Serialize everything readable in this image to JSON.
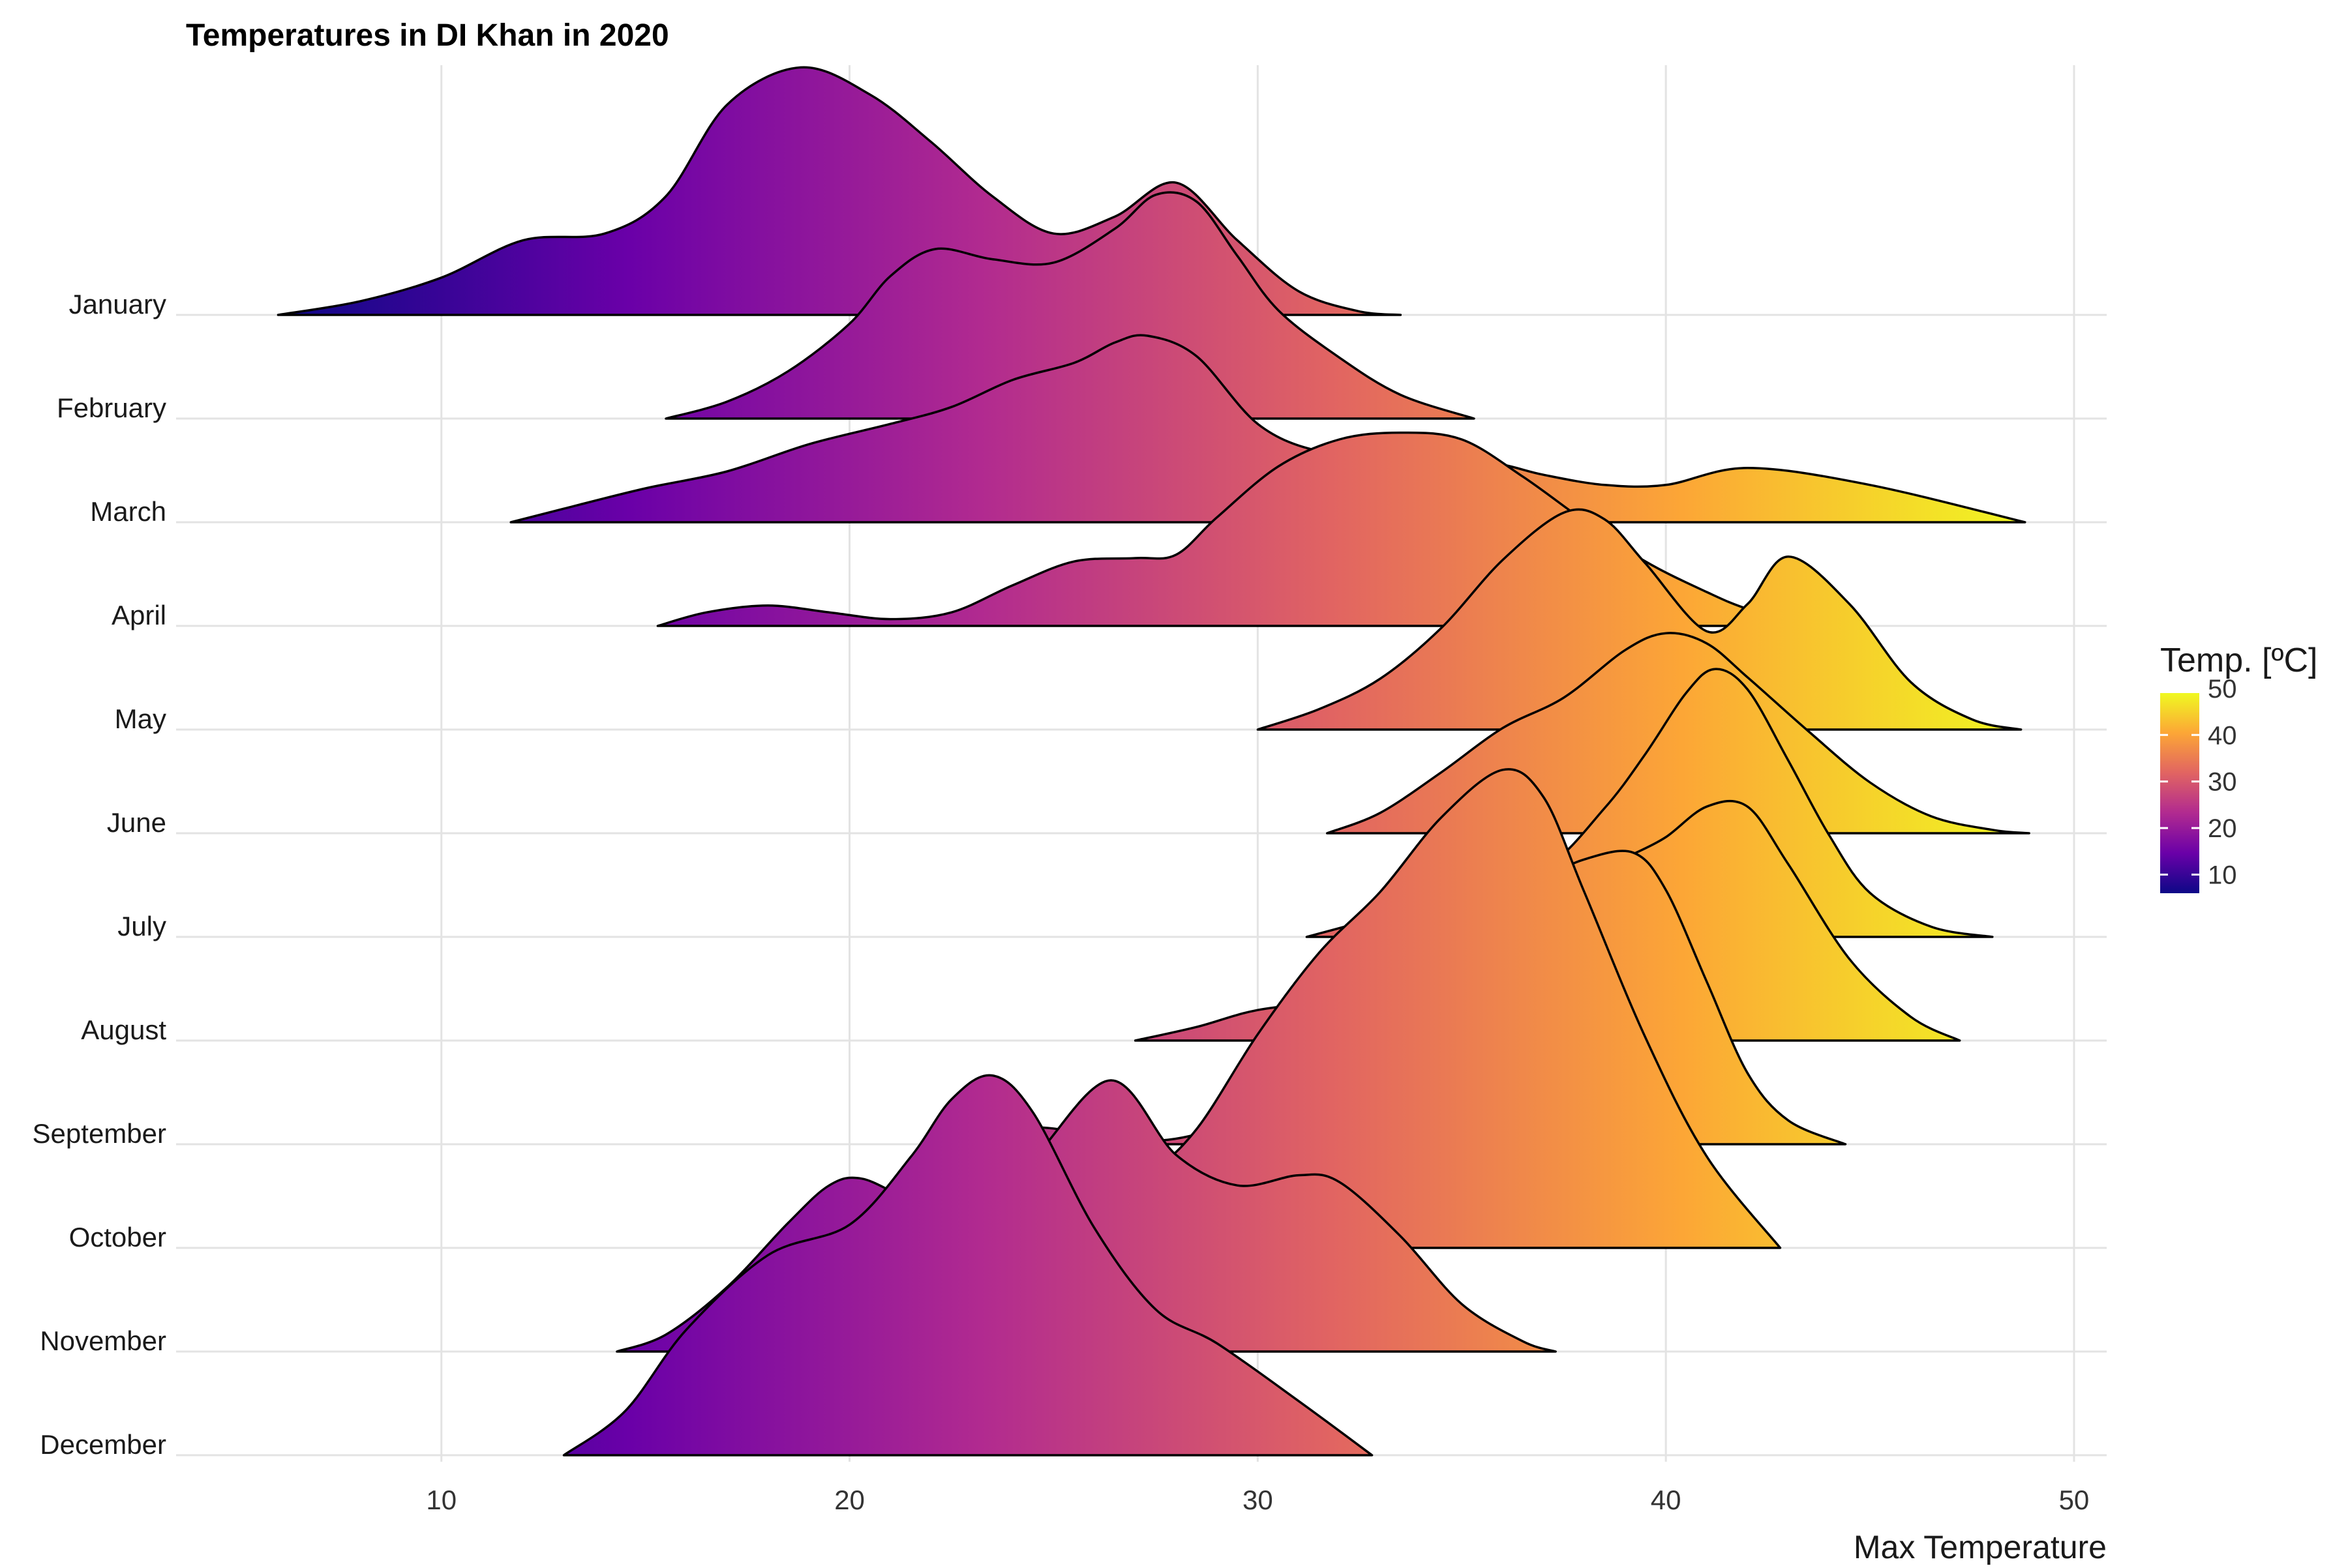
{
  "chart_data": {
    "type": "ridgeline",
    "title": "Temperatures in DI Khan in 2020",
    "xlabel": "Max Temperature",
    "ylabel": "",
    "xlim": [
      3.5,
      50.8
    ],
    "xticks": [
      10,
      20,
      30,
      40,
      50
    ],
    "grid": true,
    "colormap": "plasma",
    "legend": {
      "title": "Temp. [ºC]",
      "placement": "right",
      "ticks": [
        10,
        20,
        30,
        40,
        50
      ],
      "range": [
        6,
        49
      ],
      "stops": [
        "#0d0887",
        "#6a00a8",
        "#b12a90",
        "#e16462",
        "#fca636",
        "#f0f921"
      ]
    },
    "categories": [
      "January",
      "February",
      "March",
      "April",
      "May",
      "June",
      "July",
      "August",
      "September",
      "October",
      "November",
      "December"
    ],
    "series": [
      {
        "name": "January",
        "x": [
          6,
          8,
          10,
          12,
          14,
          15.5,
          17,
          18.8,
          20.5,
          22,
          23.5,
          25,
          26.5,
          28,
          29.5,
          31,
          32.5,
          33.5
        ],
        "density": [
          0,
          0.04,
          0.11,
          0.22,
          0.24,
          0.35,
          0.62,
          0.73,
          0.65,
          0.51,
          0.35,
          0.24,
          0.29,
          0.39,
          0.22,
          0.07,
          0.01,
          0
        ]
      },
      {
        "name": "February",
        "x": [
          15.5,
          17,
          18.5,
          20,
          21,
          22.1,
          23.5,
          25,
          26.5,
          27.5,
          28.5,
          29.5,
          30.5,
          32,
          33.5,
          35.3
        ],
        "density": [
          0,
          0.05,
          0.14,
          0.28,
          0.42,
          0.5,
          0.47,
          0.46,
          0.56,
          0.66,
          0.64,
          0.48,
          0.32,
          0.18,
          0.07,
          0
        ]
      },
      {
        "name": "March",
        "x": [
          11.7,
          13,
          15,
          17,
          19,
          21,
          22.5,
          24,
          25.5,
          26.5,
          27.3,
          28.5,
          30,
          31.5,
          33,
          34.5,
          36,
          37,
          38.5,
          40,
          42,
          45,
          48.8
        ],
        "density": [
          0,
          0.04,
          0.1,
          0.15,
          0.23,
          0.29,
          0.34,
          0.42,
          0.47,
          0.53,
          0.55,
          0.49,
          0.29,
          0.21,
          0.21,
          0.2,
          0.17,
          0.14,
          0.11,
          0.11,
          0.16,
          0.11,
          0
        ]
      },
      {
        "name": "April",
        "x": [
          15.3,
          16.5,
          18,
          19.5,
          21,
          22.5,
          24,
          25.5,
          27,
          28,
          29,
          30.5,
          32,
          33.5,
          35,
          36.5,
          38,
          39.5,
          41,
          42,
          43.5
        ],
        "density": [
          0,
          0.04,
          0.06,
          0.04,
          0.02,
          0.04,
          0.12,
          0.19,
          0.2,
          0.21,
          0.32,
          0.47,
          0.55,
          0.57,
          0.55,
          0.44,
          0.31,
          0.19,
          0.1,
          0.05,
          0
        ]
      },
      {
        "name": "May",
        "x": [
          30,
          31.5,
          33,
          34.5,
          36,
          37.5,
          38.5,
          39.5,
          41,
          42,
          43,
          44.5,
          46,
          47.5,
          48.7
        ],
        "density": [
          0,
          0.06,
          0.15,
          0.3,
          0.5,
          0.64,
          0.62,
          0.49,
          0.29,
          0.37,
          0.51,
          0.37,
          0.14,
          0.03,
          0
        ]
      },
      {
        "name": "June",
        "x": [
          31.7,
          33,
          34.5,
          36,
          37.5,
          39,
          40,
          41,
          42,
          43.5,
          45,
          46.5,
          48,
          48.9
        ],
        "density": [
          0,
          0.06,
          0.18,
          0.31,
          0.4,
          0.54,
          0.59,
          0.56,
          0.46,
          0.3,
          0.15,
          0.05,
          0.01,
          0
        ]
      },
      {
        "name": "July",
        "x": [
          31.2,
          33,
          35,
          37,
          38.5,
          39.5,
          40.5,
          41.2,
          42,
          43,
          44,
          45,
          46.5,
          48
        ],
        "density": [
          0,
          0.06,
          0.14,
          0.2,
          0.38,
          0.54,
          0.72,
          0.79,
          0.73,
          0.52,
          0.3,
          0.13,
          0.03,
          0
        ]
      },
      {
        "name": "August",
        "x": [
          27,
          28.5,
          30,
          32,
          34,
          35.5,
          37,
          38,
          38.5,
          39.2,
          40,
          41,
          42,
          43,
          44.5,
          46,
          47.2
        ],
        "density": [
          0,
          0.04,
          0.09,
          0.12,
          0.16,
          0.21,
          0.29,
          0.42,
          0.51,
          0.55,
          0.6,
          0.69,
          0.69,
          0.52,
          0.24,
          0.07,
          0
        ]
      },
      {
        "name": "September",
        "x": [
          21.8,
          23,
          24.5,
          26,
          27.5,
          29,
          30.5,
          31.5,
          32.5,
          34,
          35.5,
          37,
          38,
          39.2,
          40,
          41,
          42,
          43,
          44.4
        ],
        "density": [
          0,
          0.03,
          0.05,
          0.03,
          0.01,
          0.05,
          0.16,
          0.22,
          0.36,
          0.61,
          0.67,
          0.78,
          0.84,
          0.86,
          0.75,
          0.48,
          0.21,
          0.07,
          0
        ]
      },
      {
        "name": "October",
        "x": [
          24,
          25.5,
          27.3,
          28.5,
          30,
          31.5,
          33,
          34.5,
          36,
          37,
          38,
          39.5,
          41,
          42.8
        ],
        "density": [
          0,
          0.12,
          0.22,
          0.35,
          0.63,
          0.87,
          1.05,
          1.27,
          1.41,
          1.33,
          1.05,
          0.62,
          0.27,
          0
        ]
      },
      {
        "name": "November",
        "x": [
          14.3,
          15.5,
          17,
          18.5,
          19.5,
          20.3,
          21.5,
          23,
          24.5,
          26.4,
          28,
          29.5,
          31,
          32,
          33.5,
          35,
          36.5,
          37.3
        ],
        "density": [
          0,
          0.05,
          0.19,
          0.38,
          0.49,
          0.51,
          0.45,
          0.42,
          0.57,
          0.8,
          0.58,
          0.49,
          0.52,
          0.5,
          0.34,
          0.14,
          0.03,
          0
        ]
      },
      {
        "name": "December",
        "x": [
          13,
          14.5,
          16,
          18,
          20,
          21.5,
          22.5,
          23.5,
          24.5,
          26,
          27.5,
          29,
          31,
          32.8
        ],
        "density": [
          0,
          0.13,
          0.37,
          0.59,
          0.68,
          0.88,
          1.05,
          1.12,
          1.01,
          0.67,
          0.43,
          0.33,
          0.16,
          0
        ]
      }
    ]
  }
}
